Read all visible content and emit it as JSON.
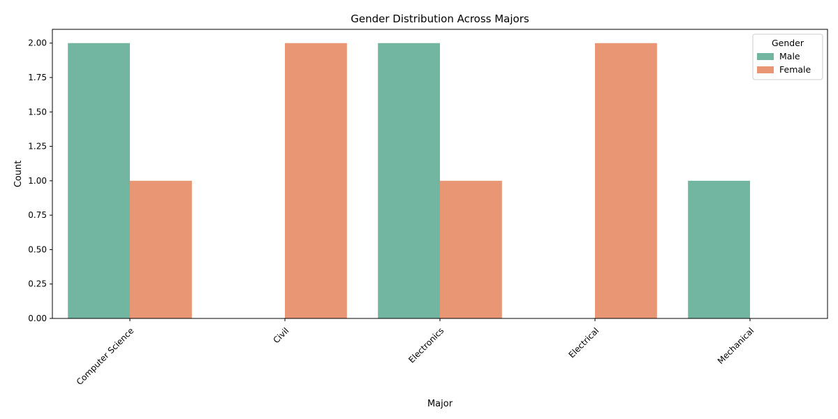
{
  "chart_data": {
    "type": "bar",
    "title": "Gender Distribution Across Majors",
    "xlabel": "Major",
    "ylabel": "Count",
    "categories": [
      "Computer Science",
      "Civil",
      "Electronics",
      "Electrical",
      "Mechanical"
    ],
    "series": [
      {
        "name": "Male",
        "values": [
          2,
          0,
          2,
          0,
          1
        ],
        "color": "#72b6a1"
      },
      {
        "name": "Female",
        "values": [
          1,
          2,
          1,
          2,
          0
        ],
        "color": "#e99675"
      }
    ],
    "ylim": [
      0,
      2.1
    ],
    "yticks": [
      "0.00",
      "0.25",
      "0.50",
      "0.75",
      "1.00",
      "1.25",
      "1.50",
      "1.75",
      "2.00"
    ],
    "legend": {
      "title": "Gender",
      "placement": "top-right"
    },
    "grid": false
  }
}
